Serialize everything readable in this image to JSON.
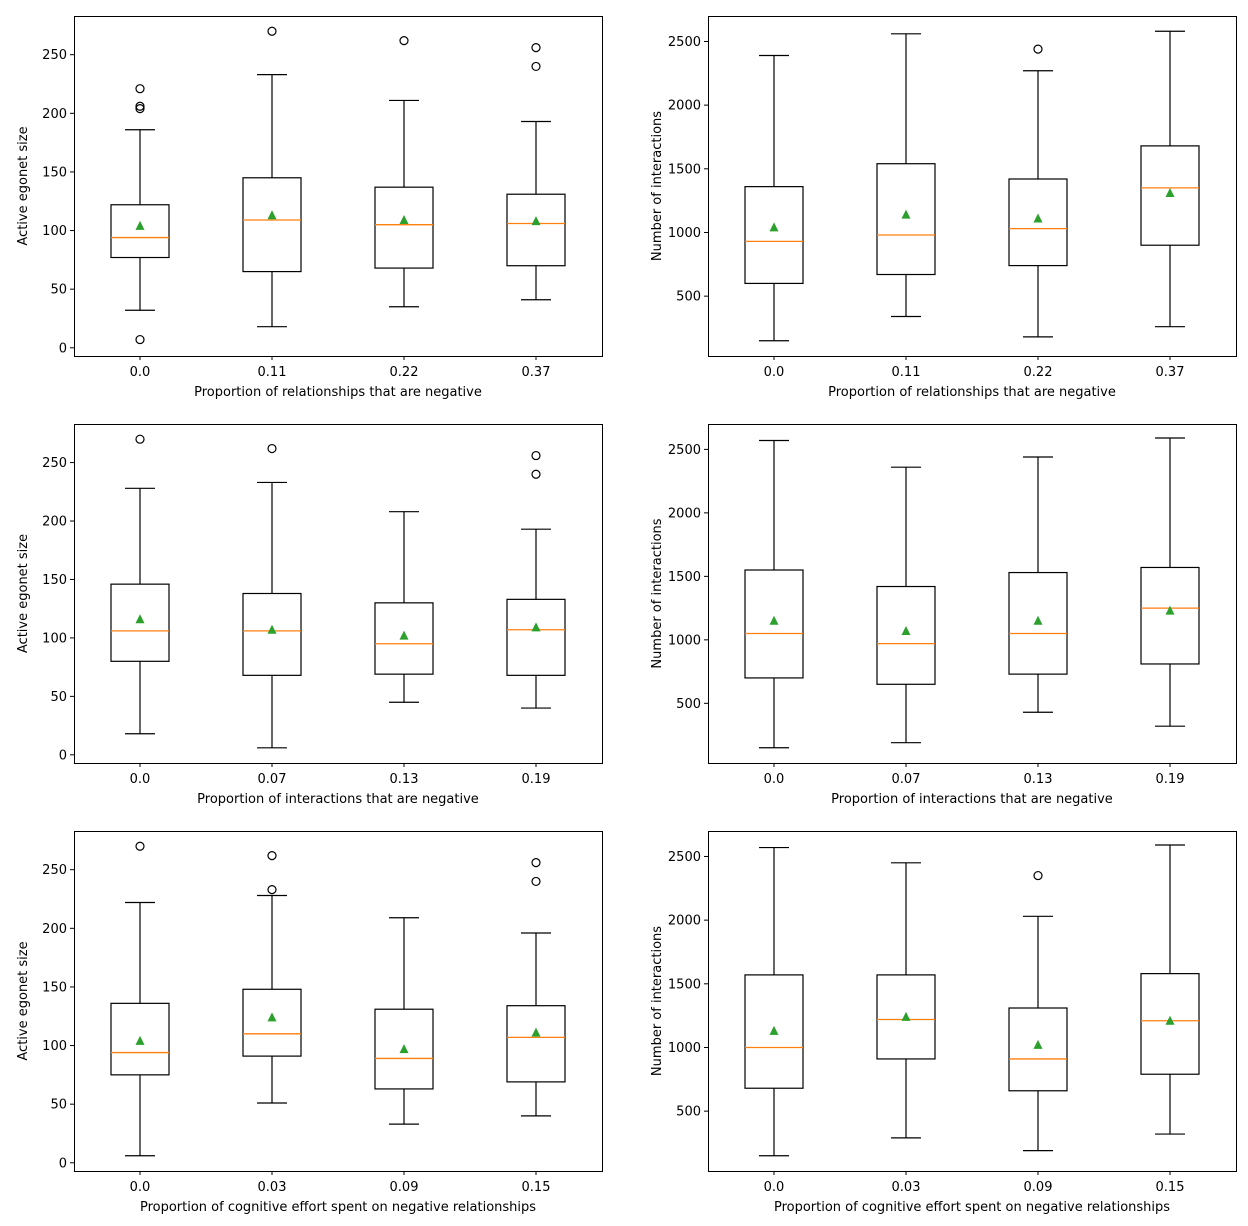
{
  "chart_data": [
    {
      "type": "box",
      "title": "",
      "xlabel": "Proportion of relationships that are negative",
      "ylabel": "Active egonet size",
      "ylim": [
        -7,
        283
      ],
      "yticks": [
        0,
        50,
        100,
        150,
        200,
        250
      ],
      "categories": [
        "0.0",
        "0.11",
        "0.22",
        "0.37"
      ],
      "boxes": [
        {
          "whislo": 32,
          "q1": 77,
          "med": 94,
          "q3": 122,
          "whishi": 186,
          "mean": 104,
          "fliers": [
            221,
            206,
            204,
            7
          ]
        },
        {
          "whislo": 18,
          "q1": 65,
          "med": 109,
          "q3": 145,
          "whishi": 233,
          "mean": 113,
          "fliers": [
            270
          ]
        },
        {
          "whislo": 35,
          "q1": 68,
          "med": 105,
          "q3": 137,
          "whishi": 211,
          "mean": 109,
          "fliers": [
            262
          ]
        },
        {
          "whislo": 41,
          "q1": 70,
          "med": 106,
          "q3": 131,
          "whishi": 193,
          "mean": 108,
          "fliers": [
            256,
            240
          ]
        }
      ]
    },
    {
      "type": "box",
      "title": "",
      "xlabel": "Proportion of relationships that are negative",
      "ylabel": "Number of interactions",
      "ylim": [
        30,
        2700
      ],
      "yticks": [
        500,
        1000,
        1500,
        2000,
        2500
      ],
      "categories": [
        "0.0",
        "0.11",
        "0.22",
        "0.37"
      ],
      "boxes": [
        {
          "whislo": 150,
          "q1": 600,
          "med": 930,
          "q3": 1360,
          "whishi": 2390,
          "mean": 1040,
          "fliers": []
        },
        {
          "whislo": 340,
          "q1": 670,
          "med": 980,
          "q3": 1540,
          "whishi": 2560,
          "mean": 1140,
          "fliers": []
        },
        {
          "whislo": 180,
          "q1": 740,
          "med": 1030,
          "q3": 1420,
          "whishi": 2270,
          "mean": 1110,
          "fliers": [
            2440
          ]
        },
        {
          "whislo": 260,
          "q1": 900,
          "med": 1350,
          "q3": 1680,
          "whishi": 2580,
          "mean": 1310,
          "fliers": []
        }
      ]
    },
    {
      "type": "box",
      "title": "",
      "xlabel": "Proportion of interactions that are negative",
      "ylabel": "Active egonet size",
      "ylim": [
        -7,
        283
      ],
      "yticks": [
        0,
        50,
        100,
        150,
        200,
        250
      ],
      "categories": [
        "0.0",
        "0.07",
        "0.13",
        "0.19"
      ],
      "boxes": [
        {
          "whislo": 18,
          "q1": 80,
          "med": 106,
          "q3": 146,
          "whishi": 228,
          "mean": 116,
          "fliers": [
            270
          ]
        },
        {
          "whislo": 6,
          "q1": 68,
          "med": 106,
          "q3": 138,
          "whishi": 233,
          "mean": 107,
          "fliers": [
            262
          ]
        },
        {
          "whislo": 45,
          "q1": 69,
          "med": 95,
          "q3": 130,
          "whishi": 208,
          "mean": 102,
          "fliers": []
        },
        {
          "whislo": 40,
          "q1": 68,
          "med": 107,
          "q3": 133,
          "whishi": 193,
          "mean": 109,
          "fliers": [
            256,
            240
          ]
        }
      ]
    },
    {
      "type": "box",
      "title": "",
      "xlabel": "Proportion of interactions that are negative",
      "ylabel": "Number of interactions",
      "ylim": [
        30,
        2700
      ],
      "yticks": [
        500,
        1000,
        1500,
        2000,
        2500
      ],
      "categories": [
        "0.0",
        "0.07",
        "0.13",
        "0.19"
      ],
      "boxes": [
        {
          "whislo": 150,
          "q1": 700,
          "med": 1050,
          "q3": 1550,
          "whishi": 2570,
          "mean": 1150,
          "fliers": []
        },
        {
          "whislo": 190,
          "q1": 650,
          "med": 970,
          "q3": 1420,
          "whishi": 2360,
          "mean": 1070,
          "fliers": []
        },
        {
          "whislo": 430,
          "q1": 730,
          "med": 1050,
          "q3": 1530,
          "whishi": 2440,
          "mean": 1150,
          "fliers": []
        },
        {
          "whislo": 320,
          "q1": 810,
          "med": 1250,
          "q3": 1570,
          "whishi": 2590,
          "mean": 1230,
          "fliers": []
        }
      ]
    },
    {
      "type": "box",
      "title": "",
      "xlabel": "Proportion of cognitive effort spent on negative relationships",
      "ylabel": "Active egonet size",
      "ylim": [
        -7,
        283
      ],
      "yticks": [
        0,
        50,
        100,
        150,
        200,
        250
      ],
      "categories": [
        "0.0",
        "0.03",
        "0.09",
        "0.15"
      ],
      "boxes": [
        {
          "whislo": 6,
          "q1": 75,
          "med": 94,
          "q3": 136,
          "whishi": 222,
          "mean": 104,
          "fliers": [
            270
          ]
        },
        {
          "whislo": 51,
          "q1": 91,
          "med": 110,
          "q3": 148,
          "whishi": 228,
          "mean": 124,
          "fliers": [
            262,
            233
          ]
        },
        {
          "whislo": 33,
          "q1": 63,
          "med": 89,
          "q3": 131,
          "whishi": 209,
          "mean": 97,
          "fliers": []
        },
        {
          "whislo": 40,
          "q1": 69,
          "med": 107,
          "q3": 134,
          "whishi": 196,
          "mean": 111,
          "fliers": [
            256,
            240
          ]
        }
      ]
    },
    {
      "type": "box",
      "title": "",
      "xlabel": "Proportion of cognitive effort spent on negative relationships",
      "ylabel": "Number of interactions",
      "ylim": [
        30,
        2700
      ],
      "yticks": [
        500,
        1000,
        1500,
        2000,
        2500
      ],
      "categories": [
        "0.0",
        "0.03",
        "0.09",
        "0.15"
      ],
      "boxes": [
        {
          "whislo": 150,
          "q1": 680,
          "med": 1000,
          "q3": 1570,
          "whishi": 2570,
          "mean": 1130,
          "fliers": []
        },
        {
          "whislo": 290,
          "q1": 910,
          "med": 1220,
          "q3": 1570,
          "whishi": 2450,
          "mean": 1240,
          "fliers": []
        },
        {
          "whislo": 190,
          "q1": 660,
          "med": 910,
          "q3": 1310,
          "whishi": 2030,
          "mean": 1020,
          "fliers": [
            2350
          ]
        },
        {
          "whislo": 320,
          "q1": 790,
          "med": 1210,
          "q3": 1580,
          "whishi": 2590,
          "mean": 1210,
          "fliers": []
        }
      ]
    }
  ],
  "colors": {
    "box": "#000000",
    "median": "#ff7f0e",
    "mean_marker": "#2ca02c",
    "flier": "#000000",
    "background": "#ffffff"
  }
}
